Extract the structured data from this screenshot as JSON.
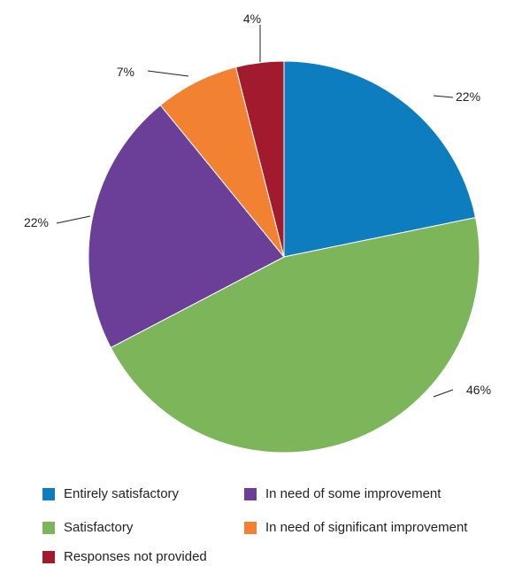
{
  "chart_data": {
    "type": "pie",
    "title": "",
    "slices": [
      {
        "label": "Entirely satisfactory",
        "value": 22,
        "display": "22%",
        "color": "#0e7dbf"
      },
      {
        "label": "Satisfactory",
        "value": 46,
        "display": "46%",
        "color": "#7db55b"
      },
      {
        "label": "In need of some improvement",
        "value": 22,
        "display": "22%",
        "color": "#6b3f98"
      },
      {
        "label": "In need of significant improvement",
        "value": 7,
        "display": "7%",
        "color": "#f28232"
      },
      {
        "label": "Responses not provided",
        "value": 4,
        "display": "4%",
        "color": "#a11a2d"
      }
    ],
    "start_angle_deg": 0,
    "direction": "clockwise",
    "legend_position": "bottom"
  },
  "legend": {
    "items": [
      {
        "label": "Entirely satisfactory",
        "color": "#0e7dbf"
      },
      {
        "label": "In need of some improvement",
        "color": "#6b3f98"
      },
      {
        "label": "Satisfactory",
        "color": "#7db55b"
      },
      {
        "label": "In need of significant improvement",
        "color": "#f28232"
      },
      {
        "label": "Responses not provided",
        "color": "#a11a2d"
      }
    ]
  }
}
